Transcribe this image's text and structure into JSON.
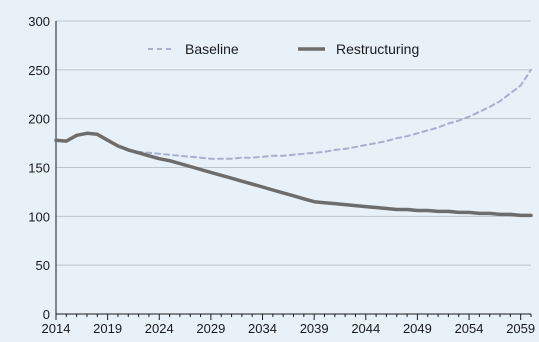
{
  "chart_data": {
    "type": "line",
    "title": "",
    "xlabel": "",
    "ylabel": "",
    "xlim": [
      2014,
      2060
    ],
    "ylim": [
      0,
      300
    ],
    "yticks": [
      0,
      50,
      100,
      150,
      200,
      250,
      300
    ],
    "xticks": [
      2014,
      2019,
      2024,
      2029,
      2034,
      2039,
      2044,
      2049,
      2054,
      2059
    ],
    "grid": "horizontal",
    "legend": "top-center",
    "series": [
      {
        "name": "Baseline",
        "color": "#a7b1cf",
        "style": "dashed",
        "x": [
          2021,
          2022,
          2023,
          2024,
          2025,
          2026,
          2027,
          2028,
          2029,
          2030,
          2031,
          2032,
          2033,
          2034,
          2035,
          2036,
          2037,
          2038,
          2039,
          2040,
          2041,
          2042,
          2043,
          2044,
          2045,
          2046,
          2047,
          2048,
          2049,
          2050,
          2051,
          2052,
          2053,
          2054,
          2055,
          2056,
          2057,
          2058,
          2059,
          2060
        ],
        "y": [
          167,
          166,
          165,
          164,
          163,
          162,
          161,
          160,
          159,
          159,
          159,
          160,
          160,
          161,
          162,
          162,
          163,
          164,
          165,
          166,
          168,
          169,
          171,
          173,
          175,
          177,
          180,
          182,
          185,
          188,
          191,
          195,
          198,
          202,
          207,
          212,
          218,
          226,
          234,
          250
        ]
      },
      {
        "name": "Restructuring",
        "color": "#6d6d6d",
        "style": "solid",
        "x": [
          2014,
          2015,
          2016,
          2017,
          2018,
          2019,
          2020,
          2021,
          2022,
          2023,
          2024,
          2025,
          2026,
          2027,
          2028,
          2029,
          2030,
          2031,
          2032,
          2033,
          2034,
          2035,
          2036,
          2037,
          2038,
          2039,
          2040,
          2041,
          2042,
          2043,
          2044,
          2045,
          2046,
          2047,
          2048,
          2049,
          2050,
          2051,
          2052,
          2053,
          2054,
          2055,
          2056,
          2057,
          2058,
          2059,
          2060
        ],
        "y": [
          178,
          177,
          183,
          185,
          184,
          178,
          172,
          168,
          165,
          162,
          159,
          157,
          154,
          151,
          148,
          145,
          142,
          139,
          136,
          133,
          130,
          127,
          124,
          121,
          118,
          115,
          114,
          113,
          112,
          111,
          110,
          109,
          108,
          107,
          107,
          106,
          106,
          105,
          105,
          104,
          104,
          103,
          103,
          102,
          102,
          101,
          101
        ]
      }
    ]
  }
}
